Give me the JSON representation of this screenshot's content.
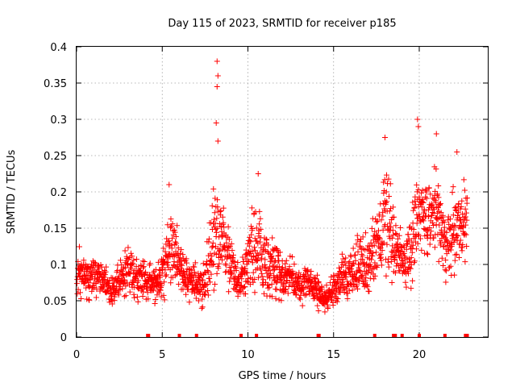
{
  "chart_data": {
    "type": "scatter",
    "title": "Day 115 of 2023, SRMTID for receiver p185",
    "xlabel": "GPS time / hours",
    "ylabel": "SRMTID / TECUs",
    "xlim": [
      0,
      24
    ],
    "ylim": [
      0,
      0.4
    ],
    "grid": true,
    "marker": "+",
    "marker_color": "#ff0000",
    "x_ticks": [
      0,
      5,
      10,
      15,
      20
    ],
    "x_tick_labels": [
      "0",
      "5",
      "10",
      "15",
      "20"
    ],
    "y_ticks": [
      0,
      0.05,
      0.1,
      0.15,
      0.2,
      0.25,
      0.3,
      0.35,
      0.4
    ],
    "y_tick_labels": [
      "0",
      "0.05",
      "0.1",
      "0.15",
      "0.2",
      "0.25",
      "0.3",
      "0.35",
      "0.4"
    ],
    "zero_value_markers_x": [
      4.15,
      4.2,
      6.0,
      7.0,
      9.6,
      10.5,
      14.1,
      14.15,
      17.4,
      18.5,
      18.6,
      19.0,
      20.0,
      21.5,
      22.7,
      22.8
    ],
    "profile_hours": [
      0,
      0.5,
      1,
      1.5,
      2,
      2.5,
      3,
      3.5,
      4,
      4.5,
      5,
      5.5,
      6,
      6.5,
      7,
      7.5,
      8,
      8.5,
      9,
      9.5,
      10,
      10.5,
      11,
      11.5,
      12,
      12.5,
      13,
      13.5,
      14,
      14.5,
      15,
      15.5,
      16,
      16.5,
      17,
      17.5,
      18,
      18.5,
      19,
      19.5,
      20,
      20.5,
      21,
      21.5,
      22,
      22.5,
      22.8
    ],
    "profile_low": [
      0.04,
      0.04,
      0.05,
      0.05,
      0.04,
      0.03,
      0.04,
      0.04,
      0.04,
      0.04,
      0.04,
      0.05,
      0.05,
      0.04,
      0.03,
      0.02,
      0.05,
      0.06,
      0.05,
      0.04,
      0.04,
      0.04,
      0.03,
      0.03,
      0.04,
      0.04,
      0.04,
      0.04,
      0.03,
      0.03,
      0.03,
      0.04,
      0.04,
      0.04,
      0.04,
      0.06,
      0.07,
      0.06,
      0.06,
      0.05,
      0.07,
      0.09,
      0.1,
      0.06,
      0.07,
      0.08,
      0.08
    ],
    "profile_high": [
      0.14,
      0.12,
      0.12,
      0.11,
      0.09,
      0.12,
      0.15,
      0.12,
      0.12,
      0.1,
      0.13,
      0.2,
      0.16,
      0.12,
      0.11,
      0.12,
      0.24,
      0.2,
      0.16,
      0.1,
      0.18,
      0.22,
      0.17,
      0.16,
      0.13,
      0.12,
      0.1,
      0.11,
      0.1,
      0.07,
      0.1,
      0.12,
      0.13,
      0.15,
      0.16,
      0.19,
      0.26,
      0.21,
      0.15,
      0.19,
      0.28,
      0.22,
      0.26,
      0.18,
      0.22,
      0.24,
      0.22
    ],
    "outliers": [
      {
        "x": 8.2,
        "y": 0.38
      },
      {
        "x": 8.25,
        "y": 0.36
      },
      {
        "x": 8.2,
        "y": 0.345
      },
      {
        "x": 8.15,
        "y": 0.295
      },
      {
        "x": 8.25,
        "y": 0.27
      },
      {
        "x": 19.9,
        "y": 0.3
      },
      {
        "x": 19.95,
        "y": 0.29
      },
      {
        "x": 21.0,
        "y": 0.28
      },
      {
        "x": 18.0,
        "y": 0.275
      },
      {
        "x": 22.2,
        "y": 0.255
      },
      {
        "x": 10.6,
        "y": 0.225
      },
      {
        "x": 5.4,
        "y": 0.21
      }
    ]
  }
}
